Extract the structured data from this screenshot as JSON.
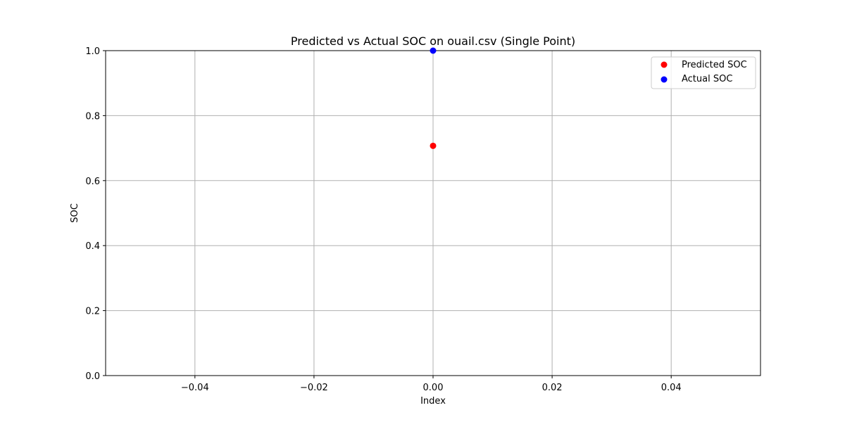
{
  "chart_data": {
    "type": "scatter",
    "title": "Predicted vs Actual SOC on ouail.csv (Single Point)",
    "xlabel": "Index",
    "ylabel": "SOC",
    "xlim": [
      -0.055,
      0.055
    ],
    "ylim": [
      0.0,
      1.0
    ],
    "x_ticks": [
      -0.04,
      -0.02,
      0.0,
      0.02,
      0.04
    ],
    "x_tick_labels": [
      "−0.04",
      "−0.02",
      "0.00",
      "0.02",
      "0.04"
    ],
    "y_ticks": [
      0.0,
      0.2,
      0.4,
      0.6,
      0.8,
      1.0
    ],
    "y_tick_labels": [
      "0.0",
      "0.2",
      "0.4",
      "0.6",
      "0.8",
      "1.0"
    ],
    "grid": true,
    "legend_position": "top-right",
    "series": [
      {
        "name": "Predicted SOC",
        "color": "#ff0000",
        "points": [
          {
            "x": 0.0,
            "y": 0.707
          }
        ]
      },
      {
        "name": "Actual SOC",
        "color": "#0000ff",
        "points": [
          {
            "x": 0.0,
            "y": 1.0
          }
        ]
      }
    ]
  }
}
